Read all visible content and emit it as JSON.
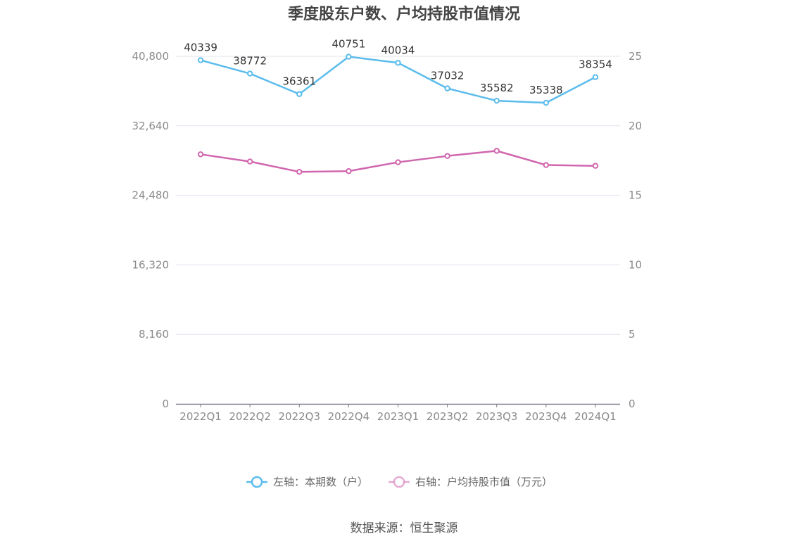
{
  "chart_data": {
    "type": "line",
    "title": "季度股东户数、户均持股市值情况",
    "categories": [
      "2022Q1",
      "2022Q2",
      "2022Q3",
      "2022Q4",
      "2023Q1",
      "2023Q2",
      "2023Q3",
      "2023Q4",
      "2024Q1"
    ],
    "left_axis": {
      "ticks": [
        "0",
        "8,160",
        "16,320",
        "24,480",
        "32,640",
        "40,800"
      ],
      "range": [
        0,
        40800
      ]
    },
    "right_axis": {
      "ticks": [
        "0",
        "5",
        "10",
        "15",
        "20",
        "25"
      ],
      "range": [
        0,
        25
      ]
    },
    "series": [
      {
        "name": "左轴：本期数（户）",
        "axis": "left",
        "color": "#5bbcec",
        "values": [
          40339,
          38772,
          36361,
          40751,
          40034,
          37032,
          35582,
          35338,
          38354
        ],
        "labels": [
          "40339",
          "38772",
          "36361",
          "40751",
          "40034",
          "37032",
          "35582",
          "35338",
          "38354"
        ]
      },
      {
        "name": "右轴：户均持股市值（万元）",
        "axis": "right",
        "color": "#d066ae",
        "values": [
          17.95,
          17.43,
          16.69,
          16.74,
          17.38,
          17.83,
          18.2,
          17.18,
          17.12
        ]
      }
    ],
    "grid": true,
    "legend_position": "bottom"
  },
  "source": "数据来源：恒生聚源"
}
